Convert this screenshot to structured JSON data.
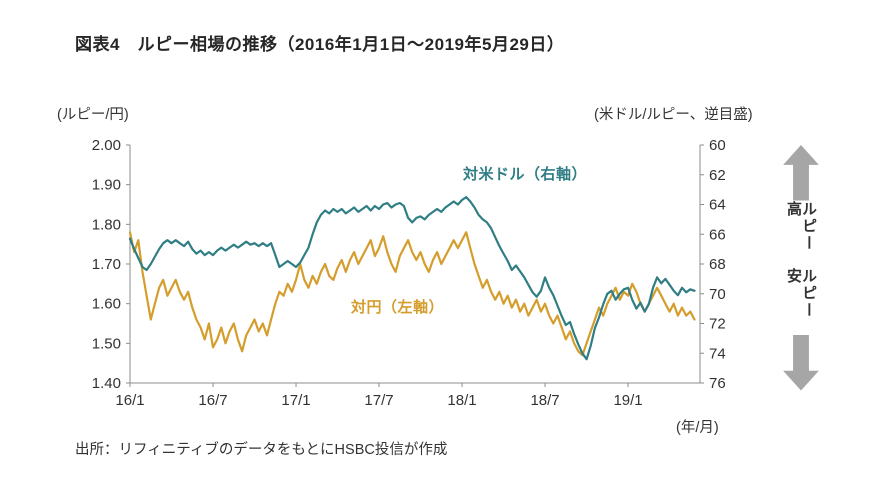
{
  "title": "図表4　ルピー相場の推移（2016年1月1日～2019年5月29日）",
  "left_axis_title": "(ルピー/円)",
  "right_axis_title": "(米ドル/ルピー、逆目盛)",
  "x_axis_unit": "(年/月)",
  "source": "出所：リフィニティブのデータをもとにHSBC投信が作成",
  "side_labels": {
    "high": "ルピー高",
    "low": "ルピー安"
  },
  "colors": {
    "jpy_series": "#D49D2C",
    "usd_series": "#2F7E84",
    "arrow": "#A6A6A6",
    "text": "#333333"
  },
  "chart_data": {
    "type": "line",
    "title": "ルピー相場の推移（2016年1月1日～2019年5月29日）",
    "x_unit": "months since 2016-01",
    "x_range": [
      0,
      41.2
    ],
    "x_ticks": [
      {
        "pos": 0,
        "label": "16/1"
      },
      {
        "pos": 6,
        "label": "16/7"
      },
      {
        "pos": 12,
        "label": "17/1"
      },
      {
        "pos": 18,
        "label": "17/7"
      },
      {
        "pos": 24,
        "label": "18/1"
      },
      {
        "pos": 30,
        "label": "18/7"
      },
      {
        "pos": 36,
        "label": "19/1"
      }
    ],
    "left_axis": {
      "min": 1.4,
      "max": 2.0,
      "label": "ルピー/円",
      "ticks": [
        "2.00",
        "1.90",
        "1.80",
        "1.70",
        "1.60",
        "1.50",
        "1.40"
      ]
    },
    "right_axis": {
      "min": 60,
      "max": 76,
      "inverted": true,
      "label": "米ドル/ルピー、逆目盛",
      "ticks": [
        60,
        62,
        64,
        66,
        68,
        70,
        72,
        74,
        76
      ]
    },
    "grid": false,
    "legend": "inline-annotations",
    "series": [
      {
        "name": "対円（左軸）",
        "axis": "left",
        "color": "#D49D2C",
        "x_start": 0,
        "x_step": 0.3,
        "values": [
          1.78,
          1.73,
          1.76,
          1.68,
          1.62,
          1.56,
          1.6,
          1.64,
          1.66,
          1.62,
          1.64,
          1.66,
          1.63,
          1.61,
          1.63,
          1.59,
          1.56,
          1.54,
          1.51,
          1.55,
          1.49,
          1.51,
          1.54,
          1.5,
          1.53,
          1.55,
          1.51,
          1.48,
          1.52,
          1.54,
          1.56,
          1.53,
          1.55,
          1.52,
          1.56,
          1.6,
          1.63,
          1.62,
          1.65,
          1.63,
          1.66,
          1.7,
          1.66,
          1.64,
          1.67,
          1.65,
          1.68,
          1.7,
          1.67,
          1.66,
          1.69,
          1.71,
          1.68,
          1.71,
          1.73,
          1.7,
          1.72,
          1.74,
          1.76,
          1.72,
          1.74,
          1.77,
          1.73,
          1.7,
          1.68,
          1.72,
          1.74,
          1.76,
          1.73,
          1.71,
          1.73,
          1.7,
          1.68,
          1.71,
          1.73,
          1.7,
          1.72,
          1.74,
          1.76,
          1.74,
          1.76,
          1.78,
          1.74,
          1.7,
          1.67,
          1.64,
          1.66,
          1.63,
          1.61,
          1.63,
          1.6,
          1.62,
          1.59,
          1.61,
          1.58,
          1.6,
          1.57,
          1.59,
          1.61,
          1.58,
          1.6,
          1.57,
          1.55,
          1.57,
          1.54,
          1.51,
          1.53,
          1.5,
          1.48,
          1.47,
          1.5,
          1.53,
          1.56,
          1.59,
          1.57,
          1.6,
          1.62,
          1.64,
          1.61,
          1.63,
          1.62,
          1.65,
          1.63,
          1.6,
          1.58,
          1.6,
          1.62,
          1.64,
          1.62,
          1.6,
          1.58,
          1.6,
          1.57,
          1.59,
          1.57,
          1.58,
          1.56
        ]
      },
      {
        "name": "対米ドル（右軸）",
        "axis": "right",
        "color": "#2F7E84",
        "x_start": 0,
        "x_step": 0.3,
        "values": [
          66.3,
          67.0,
          67.6,
          68.2,
          68.4,
          68.0,
          67.5,
          67.0,
          66.6,
          66.4,
          66.6,
          66.4,
          66.6,
          66.8,
          66.5,
          67.0,
          67.3,
          67.1,
          67.4,
          67.2,
          67.4,
          67.1,
          66.9,
          67.1,
          66.9,
          66.7,
          66.9,
          66.7,
          66.5,
          66.7,
          66.6,
          66.8,
          66.6,
          66.8,
          66.6,
          67.4,
          68.2,
          68.0,
          67.8,
          68.0,
          68.2,
          67.9,
          67.4,
          66.9,
          66.0,
          65.2,
          64.7,
          64.4,
          64.6,
          64.3,
          64.5,
          64.3,
          64.6,
          64.4,
          64.2,
          64.5,
          64.3,
          64.1,
          64.4,
          64.1,
          64.3,
          64.0,
          63.9,
          64.2,
          64.0,
          63.9,
          64.1,
          64.9,
          65.2,
          64.9,
          64.8,
          65.0,
          64.7,
          64.5,
          64.3,
          64.5,
          64.2,
          64.0,
          63.8,
          64.0,
          63.7,
          63.5,
          63.8,
          64.2,
          64.7,
          65.0,
          65.2,
          65.6,
          66.2,
          66.8,
          67.3,
          67.8,
          68.4,
          68.1,
          68.5,
          68.9,
          69.4,
          69.9,
          70.2,
          69.8,
          68.9,
          69.6,
          70.1,
          70.8,
          71.5,
          72.1,
          71.9,
          72.7,
          73.4,
          74.0,
          74.4,
          73.5,
          72.3,
          71.6,
          70.7,
          70.0,
          69.8,
          70.4,
          70.0,
          69.7,
          69.6,
          70.4,
          71.0,
          70.6,
          71.2,
          70.7,
          69.6,
          68.9,
          69.3,
          69.0,
          69.4,
          69.8,
          70.1,
          69.6,
          69.9,
          69.7,
          69.8
        ]
      }
    ]
  }
}
